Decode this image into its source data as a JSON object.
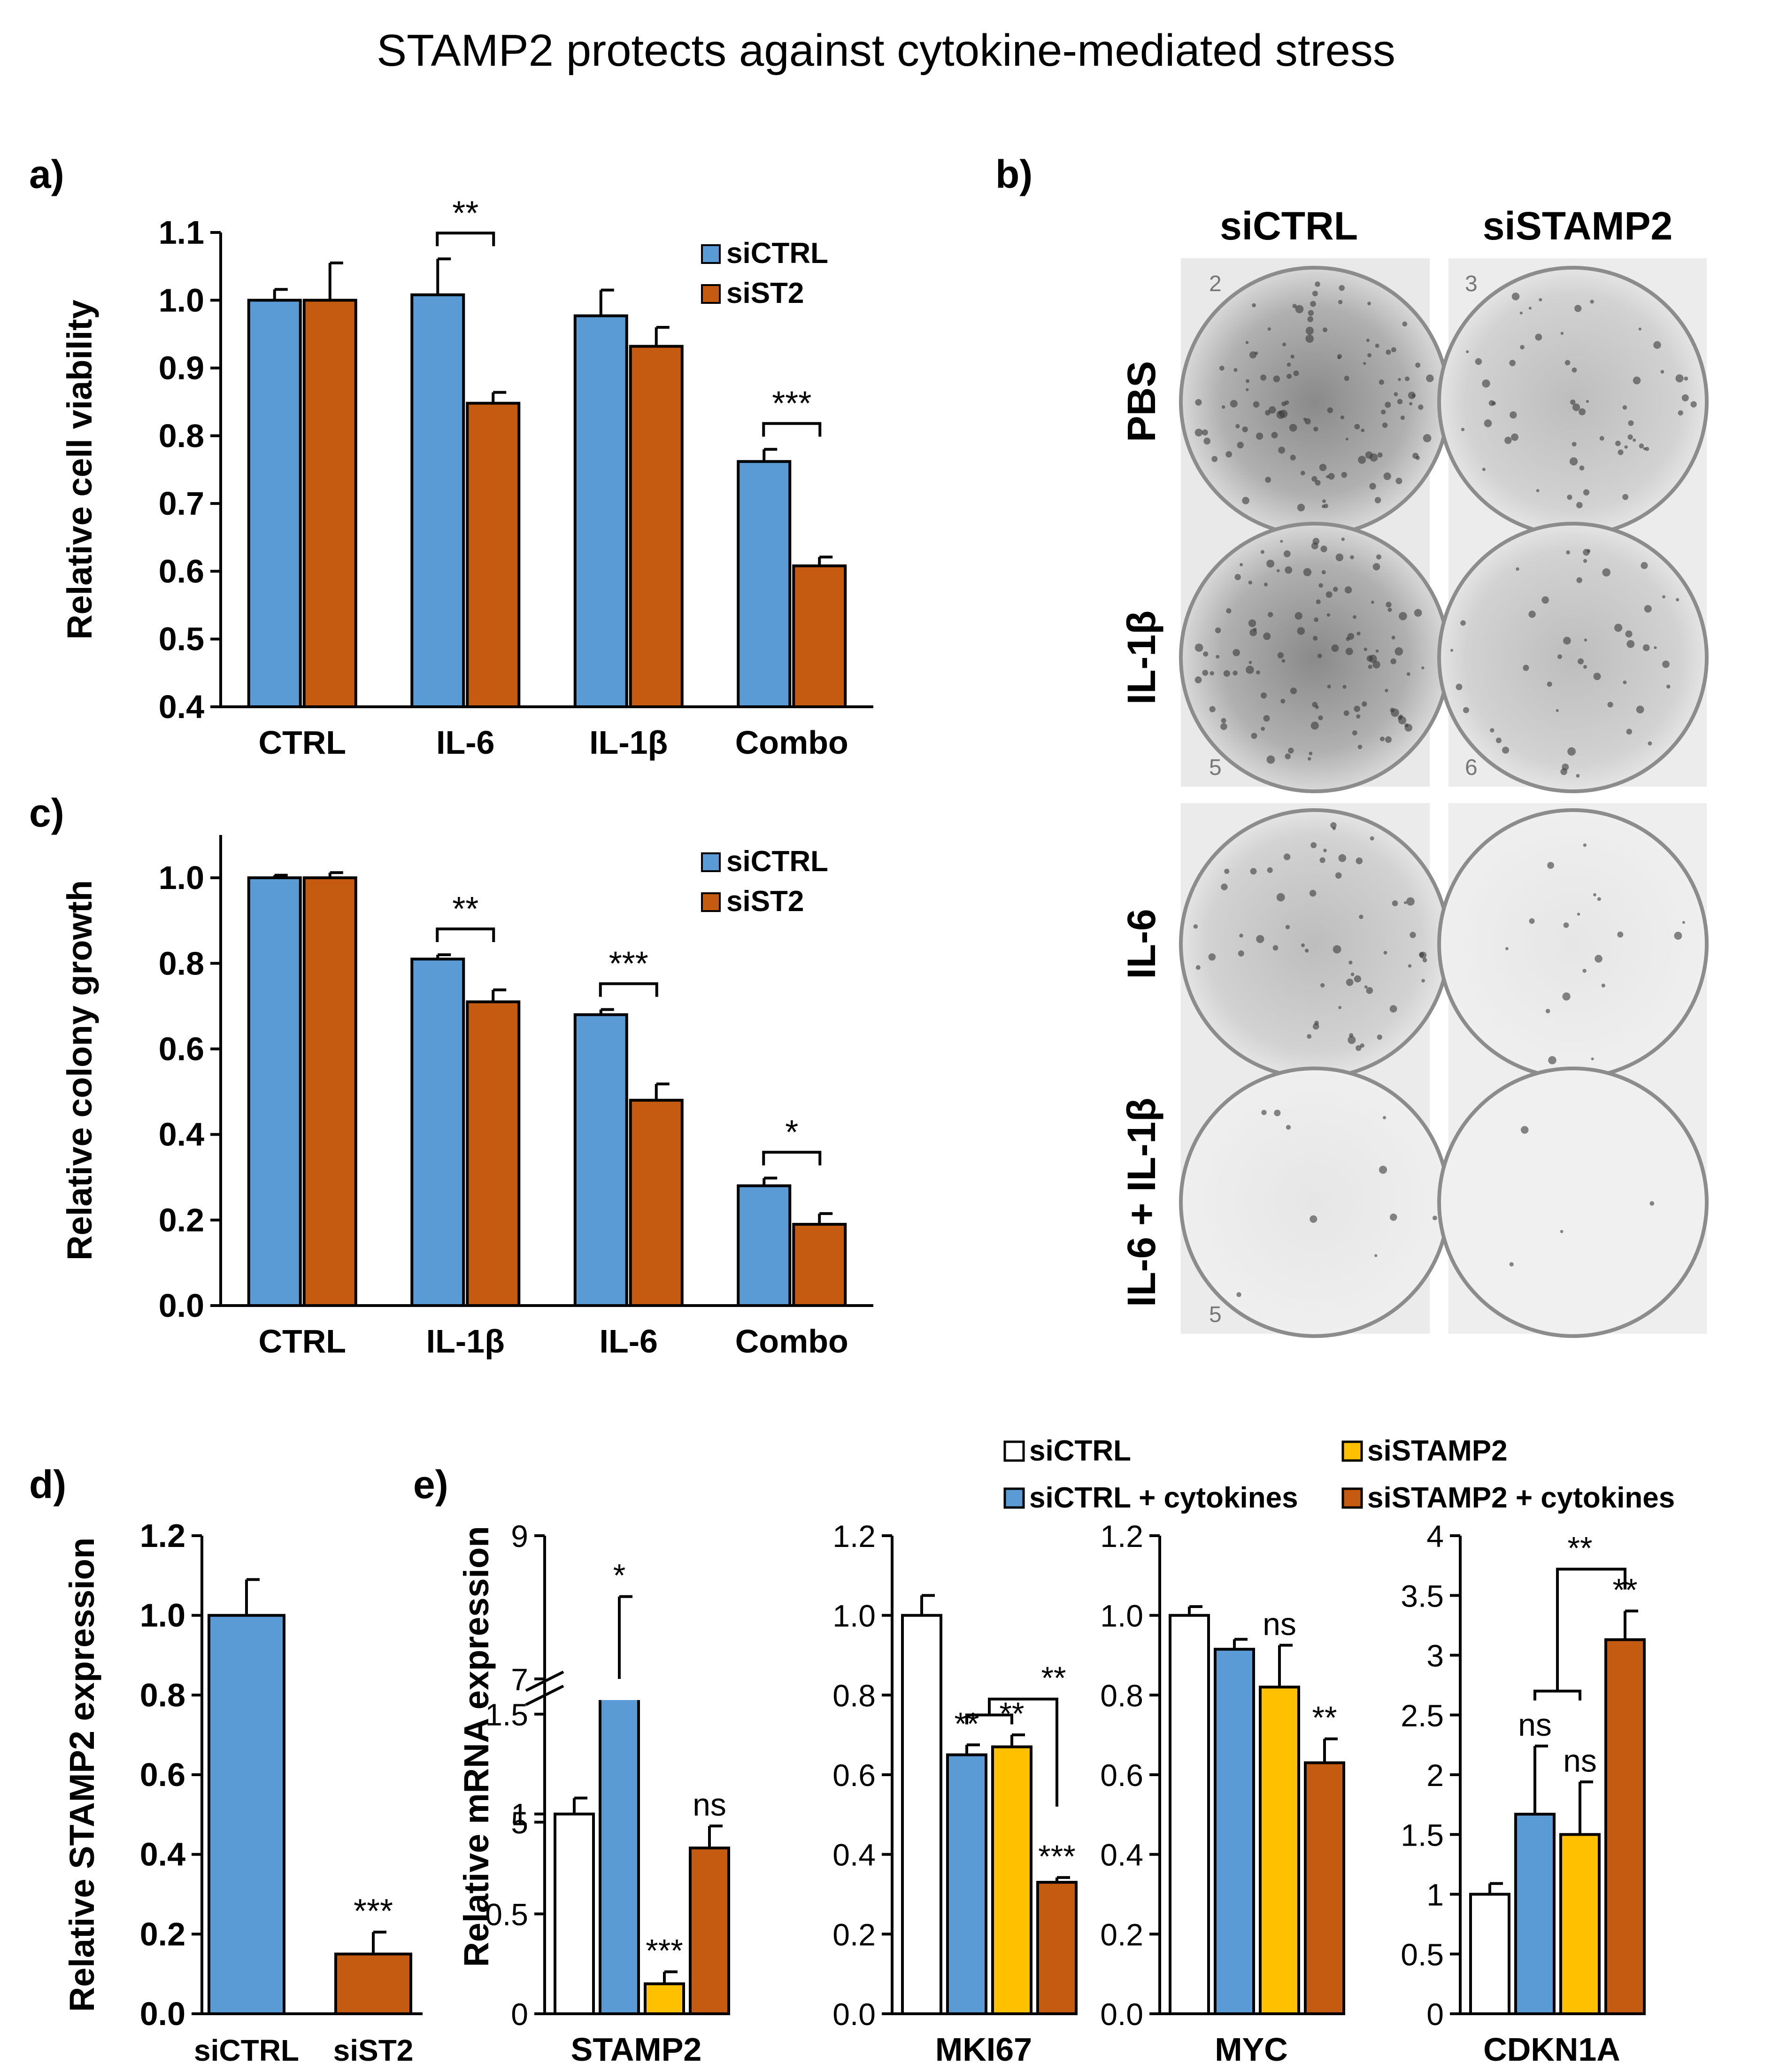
{
  "title": "STAMP2 protects against cytokine-mediated stress",
  "colors": {
    "blue": "#5B9BD5",
    "orange": "#C55A11",
    "yellow": "#FFC000",
    "white": "#FFFFFF",
    "axis": "#000000"
  },
  "panel_labels": {
    "a": "a)",
    "b": "b)",
    "c": "c)",
    "d": "d)",
    "e": "e)"
  },
  "chart_data": [
    {
      "id": "a",
      "type": "bar",
      "ylabel": "Relative cell viability",
      "ylim": [
        0.4,
        1.1
      ],
      "yticks": [
        0.4,
        0.5,
        0.6,
        0.7,
        0.8,
        0.9,
        1.0,
        1.1
      ],
      "ytick_labels": [
        "0.4",
        "0.5",
        "0.6",
        "0.7",
        "0.8",
        "0.9",
        "1.0",
        "1.1"
      ],
      "categories": [
        "CTRL",
        "IL-6",
        "IL-1β",
        "Combo"
      ],
      "legend": [
        "siCTRL",
        "siST2"
      ],
      "series": [
        {
          "name": "siCTRL",
          "color": "blue",
          "values": [
            1.0,
            1.008,
            0.977,
            0.762
          ],
          "errors": [
            0.016,
            0.053,
            0.038,
            0.018
          ]
        },
        {
          "name": "siST2",
          "color": "orange",
          "values": [
            1.0,
            0.848,
            0.932,
            0.608
          ],
          "errors": [
            0.055,
            0.016,
            0.028,
            0.013
          ]
        }
      ],
      "significance": [
        {
          "category": "IL-6",
          "label": "**"
        },
        {
          "category": "Combo",
          "label": "***"
        }
      ]
    },
    {
      "id": "c",
      "type": "bar",
      "ylabel": "Relative colony growth",
      "ylim": [
        0.0,
        1.1
      ],
      "yticks": [
        0.0,
        0.2,
        0.4,
        0.6,
        0.8,
        1.0
      ],
      "ytick_labels": [
        "0.0",
        "0.2",
        "0.4",
        "0.6",
        "0.8",
        "1.0"
      ],
      "categories": [
        "CTRL",
        "IL-1β",
        "IL-6",
        "Combo"
      ],
      "legend": [
        "siCTRL",
        "siST2"
      ],
      "series": [
        {
          "name": "siCTRL",
          "color": "blue",
          "values": [
            1.0,
            0.81,
            0.68,
            0.28
          ],
          "errors": [
            0.006,
            0.01,
            0.012,
            0.018
          ]
        },
        {
          "name": "siST2",
          "color": "orange",
          "values": [
            1.0,
            0.71,
            0.48,
            0.19
          ],
          "errors": [
            0.012,
            0.028,
            0.038,
            0.025
          ]
        }
      ],
      "significance": [
        {
          "category": "IL-1β",
          "label": "**"
        },
        {
          "category": "IL-6",
          "label": "***"
        },
        {
          "category": "Combo",
          "label": "*"
        }
      ]
    },
    {
      "id": "d",
      "type": "bar",
      "ylabel": "Relative STAMP2 expression",
      "ylim": [
        0.0,
        1.2
      ],
      "yticks": [
        0.0,
        0.2,
        0.4,
        0.6,
        0.8,
        1.0,
        1.2
      ],
      "ytick_labels": [
        "0.0",
        "0.2",
        "0.4",
        "0.6",
        "0.8",
        "1.0",
        "1.2"
      ],
      "categories": [
        "siCTRL",
        "siST2"
      ],
      "series": [
        {
          "name": "expression",
          "colors": [
            "blue",
            "orange"
          ],
          "values": [
            1.0,
            0.15
          ],
          "errors": [
            0.09,
            0.055
          ]
        }
      ],
      "significance": [
        {
          "category": "siST2",
          "label": "***"
        }
      ]
    },
    {
      "id": "e",
      "type": "bar",
      "ylabel": "Relative mRNA expression",
      "legend": [
        "siCTRL",
        "siCTRL + cytokines",
        "siSTAMP2",
        "siSTAMP2 + cytokines"
      ],
      "legend_colors": [
        "white",
        "blue",
        "yellow",
        "orange"
      ],
      "subplots": [
        {
          "gene": "STAMP2",
          "broken_axis": true,
          "lower_ylim": [
            0,
            1.5
          ],
          "lower_ticks": [
            "0",
            "0.5",
            "1",
            "1.5"
          ],
          "upper_ylim": [
            5,
            9
          ],
          "upper_ticks": [
            "5",
            "7",
            "9"
          ],
          "values": [
            1.0,
            6.75,
            0.15,
            0.83
          ],
          "errors": [
            0.08,
            1.4,
            0.06,
            0.11
          ],
          "annotations": [
            "",
            "*",
            "***",
            "ns"
          ]
        },
        {
          "gene": "MKI67",
          "ylim": [
            0,
            1.2
          ],
          "ticks": [
            "0.0",
            "0.2",
            "0.4",
            "0.6",
            "0.8",
            "1.0",
            "1.2"
          ],
          "values": [
            1.0,
            0.65,
            0.67,
            0.33
          ],
          "errors": [
            0.05,
            0.025,
            0.03,
            0.012
          ],
          "annotations": [
            "",
            "**",
            "**",
            "***"
          ],
          "bracket_label": "**"
        },
        {
          "gene": "MYC",
          "ylim": [
            0,
            1.2
          ],
          "ticks": [
            "0.0",
            "0.2",
            "0.4",
            "0.6",
            "0.8",
            "1.0",
            "1.2"
          ],
          "values": [
            1.0,
            0.915,
            0.82,
            0.63
          ],
          "errors": [
            0.022,
            0.025,
            0.105,
            0.06
          ],
          "annotations": [
            "",
            "",
            "ns",
            "**"
          ]
        },
        {
          "gene": "CDKN1A",
          "ylim": [
            0,
            4
          ],
          "ticks": [
            "0",
            "0.5",
            "1",
            "1.5",
            "2",
            "2.5",
            "3",
            "3.5",
            "4"
          ],
          "values": [
            1.0,
            1.67,
            1.5,
            3.13
          ],
          "errors": [
            0.09,
            0.57,
            0.44,
            0.24
          ],
          "annotations": [
            "",
            "ns",
            "ns",
            "**"
          ],
          "bracket_label": "**"
        }
      ]
    }
  ],
  "panel_b": {
    "columns": [
      "siCTRL",
      "siSTAMP2"
    ],
    "rows": [
      "PBS",
      "IL-1β",
      "IL-6",
      "IL-6 + IL-1β"
    ],
    "well_numbers": {
      "top_left": [
        "2",
        "5"
      ],
      "top_right": [
        "3",
        "6"
      ],
      "bottom_left": [
        "5"
      ]
    }
  }
}
